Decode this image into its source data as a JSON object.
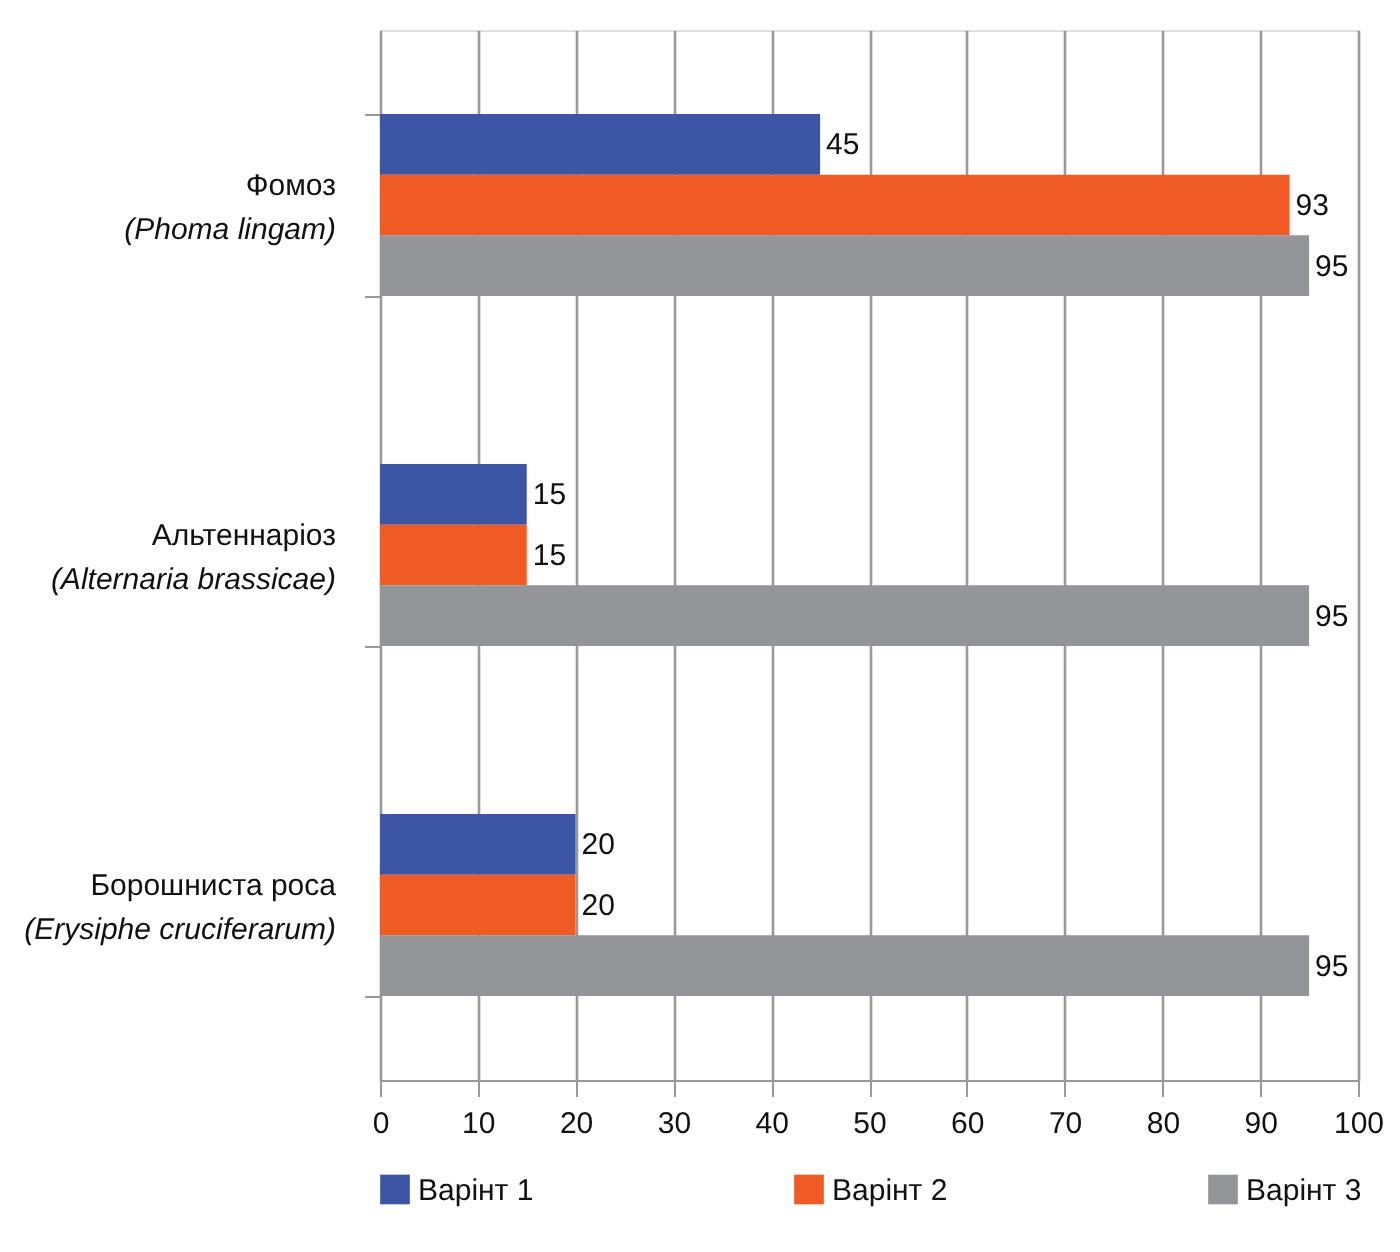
{
  "chart_data": {
    "type": "bar",
    "orientation": "horizontal",
    "categories": [
      "Фомоз\n(Phoma lingam)",
      "Альтеннаріоз\n(Alternaria brassicae)",
      "Борошниста роса\n(Erysiphe cruciferarum)"
    ],
    "series": [
      {
        "name": "Варінт 1",
        "color": "#3c55a5",
        "values": [
          45,
          15,
          20
        ]
      },
      {
        "name": "Варінт 2",
        "color": "#f05a24",
        "values": [
          93,
          15,
          20
        ]
      },
      {
        "name": "Варінт 3",
        "color": "#939598",
        "values": [
          95,
          95,
          95
        ]
      }
    ],
    "xlim": [
      0,
      100
    ],
    "xticks": [
      0,
      10,
      20,
      30,
      40,
      50,
      60,
      70,
      80,
      90,
      100
    ],
    "grid": "x",
    "legend": "bottom",
    "data_labels": true
  }
}
